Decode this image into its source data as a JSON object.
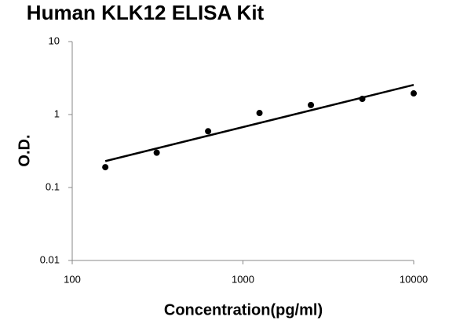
{
  "chart_data": {
    "type": "scatter",
    "title": "Human KLK12 ELISA Kit",
    "x_label": "Concentration(pg/ml)",
    "y_label": "O.D.",
    "series": [
      {
        "color": "#000000",
        "x": [
          156.25,
          312.5,
          625,
          1250,
          2500,
          5000,
          10000
        ],
        "values": [
          0.19,
          0.3,
          0.59,
          1.05,
          1.35,
          1.64,
          1.95
        ]
      }
    ],
    "trendline": {
      "color": "#000000",
      "x": [
        156.25,
        10000
      ],
      "values": [
        0.23,
        2.55
      ]
    },
    "xlim": [
      100,
      10000
    ],
    "xticks": [
      100,
      1000,
      10000
    ],
    "ylim": [
      0.01,
      10
    ],
    "yticks": [
      0.01,
      0.1,
      1,
      10
    ],
    "xlog": true,
    "ylog": true,
    "grid": false
  }
}
